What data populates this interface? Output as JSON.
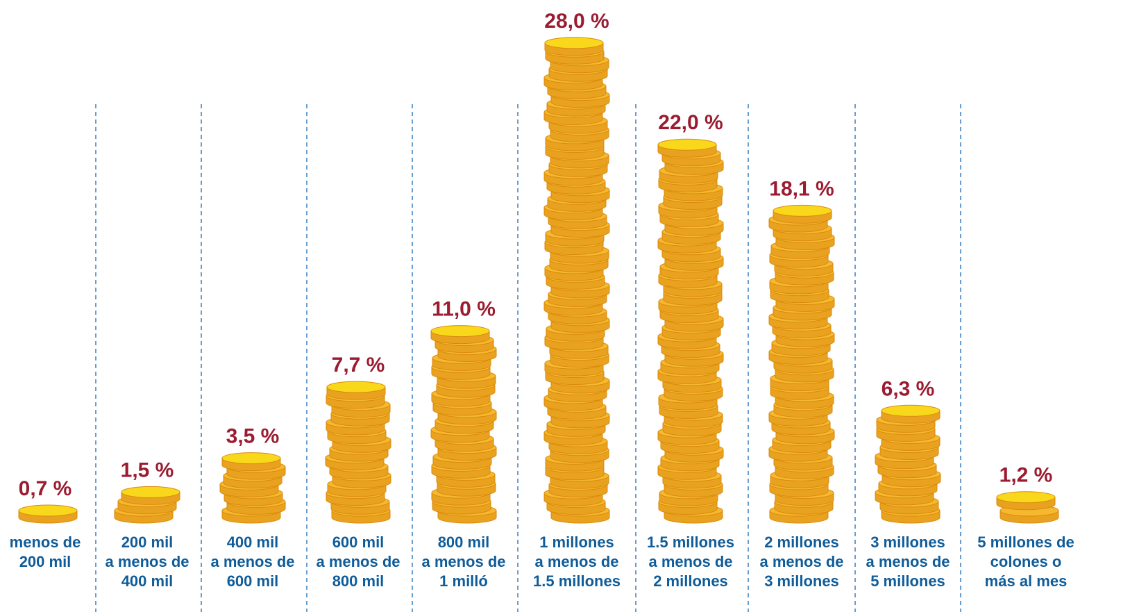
{
  "chart_data": {
    "type": "bar",
    "categories": [
      "menos de\n200 mil",
      "200 mil\na menos de\n400 mil",
      "400 mil\na menos de\n600 mil",
      "600 mil\na menos de\n800 mil",
      "800 mil\na menos de\n1 milló",
      "1 millones\na menos de\n1.5 millones",
      "1.5 millones\na menos de\n2 millones",
      "2 millones\na menos de\n3 millones",
      "3 millones\na menos de\n5 millones",
      "5 millones de\ncolones o\nmás al mes"
    ],
    "values": [
      0.7,
      1.5,
      3.5,
      7.7,
      11.0,
      28.0,
      22.0,
      18.1,
      6.3,
      1.2
    ],
    "value_labels": [
      "0,7 %",
      "1,5 %",
      "3,5 %",
      "7,7 %",
      "11,0 %",
      "28,0 %",
      "22,0 %",
      "18,1 %",
      "6,3 %",
      "1,2 %"
    ],
    "color": "#f5b82e"
  }
}
